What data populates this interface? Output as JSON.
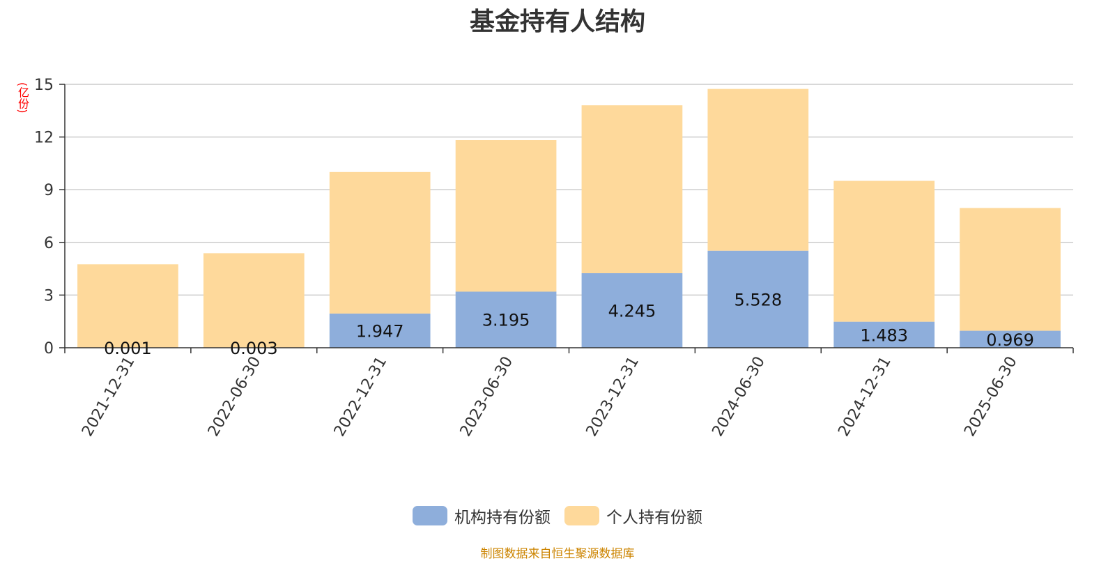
{
  "chart_data": {
    "type": "bar",
    "stacked": true,
    "title": "基金持有人结构",
    "unit_label": "(亿份)",
    "categories": [
      "2021-12-31",
      "2022-06-30",
      "2022-12-31",
      "2023-06-30",
      "2023-12-31",
      "2024-06-30",
      "2024-12-31",
      "2025-06-30"
    ],
    "series": [
      {
        "name": "机构持有份额",
        "color": "#8eaedb",
        "values": [
          0.001,
          0.003,
          1.947,
          3.195,
          4.245,
          5.528,
          1.483,
          0.969
        ],
        "labels": [
          "0.001",
          "0.003",
          "1.947",
          "3.195",
          "4.245",
          "5.528",
          "1.483",
          "0.969"
        ]
      },
      {
        "name": "个人持有份额",
        "color": "#fed99b",
        "values": [
          4.75,
          5.38,
          8.06,
          8.63,
          9.56,
          9.21,
          8.02,
          6.99
        ]
      }
    ],
    "ylim": [
      0,
      15
    ],
    "yticks": [
      0,
      3,
      6,
      9,
      12,
      15
    ],
    "grid": true,
    "legend_position": "bottom"
  },
  "source_note": "制图数据来自恒生聚源数据库"
}
